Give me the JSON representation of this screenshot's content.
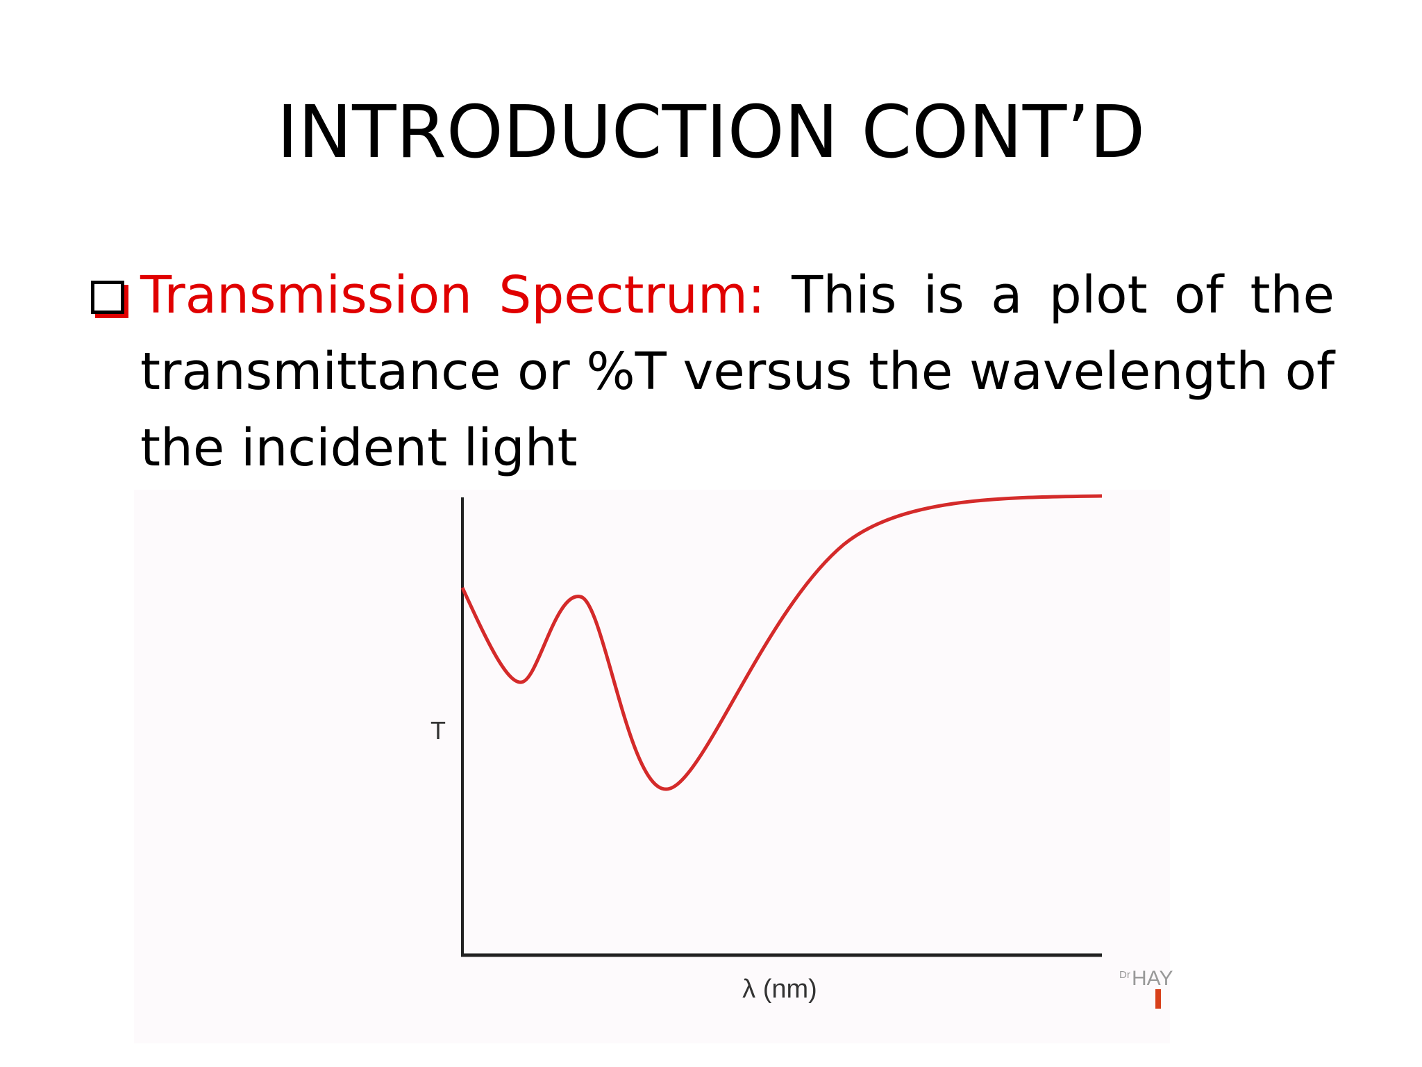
{
  "title": "INTRODUCTION CONT’D",
  "bullet": {
    "term": "Transmission Spectrum:",
    "text": "This is a plot of the transmittance or %T versus the wavelength of the incident light"
  },
  "figure": {
    "y_label": "T",
    "x_label": "λ (nm)",
    "watermark": {
      "prefix": "Dr",
      "text": "HAY"
    }
  }
}
